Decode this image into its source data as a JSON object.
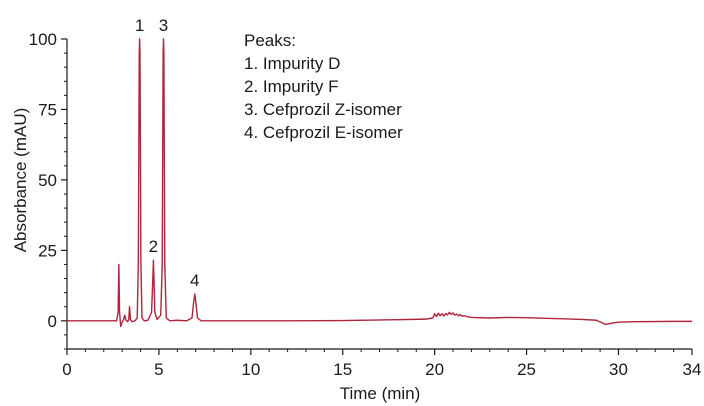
{
  "chart_data": {
    "type": "line",
    "xlabel": "Time (min)",
    "ylabel": "Absorbance (mAU)",
    "xlim": [
      0,
      34
    ],
    "ylim": [
      -10,
      100
    ],
    "xticks": [
      0,
      5,
      10,
      15,
      20,
      25,
      30,
      34
    ],
    "yticks": [
      0,
      25,
      50,
      75,
      100
    ],
    "grid": false,
    "line_color": "#b0243c",
    "peak_labels": [
      {
        "label": "1",
        "x": 3.95,
        "y": 100
      },
      {
        "label": "2",
        "x": 4.7,
        "y": 21.5
      },
      {
        "label": "3",
        "x": 5.25,
        "y": 100
      },
      {
        "label": "4",
        "x": 6.95,
        "y": 9.5
      }
    ],
    "legend": {
      "title": "Peaks:",
      "items": [
        "1. Impurity D",
        "2. Impurity F",
        "3. Cefprozil Z-isomer",
        "4. Cefprozil E-isomer"
      ]
    },
    "series": [
      {
        "x": [
          0,
          2.7,
          2.78,
          2.82,
          2.86,
          2.92,
          3.0,
          3.08,
          3.14,
          3.2,
          3.3,
          3.36,
          3.4,
          3.46,
          3.55,
          3.7,
          3.82,
          3.88,
          3.93,
          3.95,
          3.97,
          4.02,
          4.08,
          4.2,
          4.4,
          4.6,
          4.67,
          4.7,
          4.73,
          4.78,
          4.9,
          5.1,
          5.18,
          5.23,
          5.25,
          5.27,
          5.32,
          5.4,
          5.6,
          6.0,
          6.5,
          6.8,
          6.88,
          6.95,
          7.02,
          7.1,
          7.3,
          8.0,
          10,
          12,
          15,
          18,
          19.5,
          19.9,
          20.0,
          20.1,
          20.2,
          20.3,
          20.4,
          20.5,
          20.6,
          20.7,
          20.8,
          20.9,
          21.0,
          21.1,
          21.2,
          21.3,
          21.4,
          21.5,
          21.6,
          21.8,
          22.0,
          23.0,
          24.0,
          25.0,
          26.0,
          27.0,
          28.0,
          28.8,
          29.1,
          29.3,
          29.6,
          30.0,
          31.0,
          33.0,
          34.0
        ],
        "y": [
          0,
          0,
          3,
          20,
          3,
          -2,
          -0.5,
          0.5,
          2,
          0.3,
          -0.3,
          0.5,
          5,
          0.2,
          -0.3,
          0,
          1,
          20,
          95,
          100,
          95,
          20,
          1,
          0,
          0.2,
          3,
          15,
          21.5,
          15,
          3,
          0.5,
          2,
          20,
          95,
          100,
          95,
          20,
          1,
          0,
          0.2,
          0,
          1,
          6,
          9.5,
          6,
          1,
          0,
          0,
          0,
          0,
          0.1,
          0.4,
          0.6,
          1.0,
          2.5,
          1.5,
          2.7,
          1.8,
          2.5,
          1.7,
          2.6,
          2.1,
          3.0,
          2.3,
          2.8,
          2.0,
          2.4,
          1.8,
          2.2,
          1.6,
          1.8,
          1.4,
          1.2,
          1.0,
          1.2,
          1.1,
          0.9,
          0.7,
          0.5,
          0.2,
          -0.7,
          -1.3,
          -0.9,
          -0.5,
          -0.3,
          -0.2,
          -0.2
        ]
      }
    ]
  }
}
